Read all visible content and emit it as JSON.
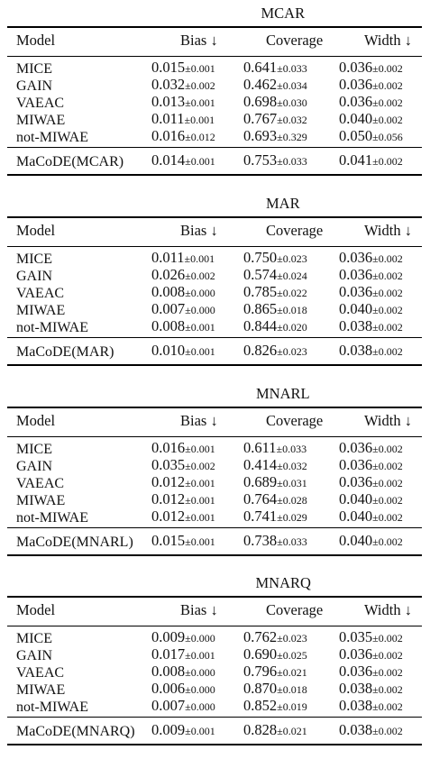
{
  "tables": [
    {
      "title": "MCAR",
      "columns": [
        "Model",
        "Bias ↓",
        "Coverage",
        "Width ↓"
      ],
      "rows": [
        {
          "model": "MICE",
          "bias": [
            "0.015",
            "±0.001"
          ],
          "coverage": [
            "0.641",
            "±0.033"
          ],
          "width": [
            "0.036",
            "±0.002"
          ]
        },
        {
          "model": "GAIN",
          "bias": [
            "0.032",
            "±0.002"
          ],
          "coverage": [
            "0.462",
            "±0.034"
          ],
          "width": [
            "0.036",
            "±0.002"
          ]
        },
        {
          "model": "VAEAC",
          "bias": [
            "0.013",
            "±0.001"
          ],
          "coverage": [
            "0.698",
            "±0.030"
          ],
          "width": [
            "0.036",
            "±0.002"
          ]
        },
        {
          "model": "MIWAE",
          "bias": [
            "0.011",
            "±0.001"
          ],
          "coverage": [
            "0.767",
            "±0.032"
          ],
          "width": [
            "0.040",
            "±0.002"
          ]
        },
        {
          "model": "not-MIWAE",
          "bias": [
            "0.016",
            "±0.012"
          ],
          "coverage": [
            "0.693",
            "±0.329"
          ],
          "width": [
            "0.050",
            "±0.056"
          ]
        }
      ],
      "final": {
        "model": "MaCoDE(MCAR)",
        "bias": [
          "0.014",
          "±0.001"
        ],
        "coverage": [
          "0.753",
          "±0.033"
        ],
        "width": [
          "0.041",
          "±0.002"
        ]
      }
    },
    {
      "title": "MAR",
      "columns": [
        "Model",
        "Bias ↓",
        "Coverage",
        "Width ↓"
      ],
      "rows": [
        {
          "model": "MICE",
          "bias": [
            "0.011",
            "±0.001"
          ],
          "coverage": [
            "0.750",
            "±0.023"
          ],
          "width": [
            "0.036",
            "±0.002"
          ]
        },
        {
          "model": "GAIN",
          "bias": [
            "0.026",
            "±0.002"
          ],
          "coverage": [
            "0.574",
            "±0.024"
          ],
          "width": [
            "0.036",
            "±0.002"
          ]
        },
        {
          "model": "VAEAC",
          "bias": [
            "0.008",
            "±0.000"
          ],
          "coverage": [
            "0.785",
            "±0.022"
          ],
          "width": [
            "0.036",
            "±0.002"
          ]
        },
        {
          "model": "MIWAE",
          "bias": [
            "0.007",
            "±0.000"
          ],
          "coverage": [
            "0.865",
            "±0.018"
          ],
          "width": [
            "0.040",
            "±0.002"
          ]
        },
        {
          "model": "not-MIWAE",
          "bias": [
            "0.008",
            "±0.001"
          ],
          "coverage": [
            "0.844",
            "±0.020"
          ],
          "width": [
            "0.038",
            "±0.002"
          ]
        }
      ],
      "final": {
        "model": "MaCoDE(MAR)",
        "bias": [
          "0.010",
          "±0.001"
        ],
        "coverage": [
          "0.826",
          "±0.023"
        ],
        "width": [
          "0.038",
          "±0.002"
        ]
      }
    },
    {
      "title": "MNARL",
      "columns": [
        "Model",
        "Bias ↓",
        "Coverage",
        "Width ↓"
      ],
      "rows": [
        {
          "model": "MICE",
          "bias": [
            "0.016",
            "±0.001"
          ],
          "coverage": [
            "0.611",
            "±0.033"
          ],
          "width": [
            "0.036",
            "±0.002"
          ]
        },
        {
          "model": "GAIN",
          "bias": [
            "0.035",
            "±0.002"
          ],
          "coverage": [
            "0.414",
            "±0.032"
          ],
          "width": [
            "0.036",
            "±0.002"
          ]
        },
        {
          "model": "VAEAC",
          "bias": [
            "0.012",
            "±0.001"
          ],
          "coverage": [
            "0.689",
            "±0.031"
          ],
          "width": [
            "0.036",
            "±0.002"
          ]
        },
        {
          "model": "MIWAE",
          "bias": [
            "0.012",
            "±0.001"
          ],
          "coverage": [
            "0.764",
            "±0.028"
          ],
          "width": [
            "0.040",
            "±0.002"
          ]
        },
        {
          "model": "not-MIWAE",
          "bias": [
            "0.012",
            "±0.001"
          ],
          "coverage": [
            "0.741",
            "±0.029"
          ],
          "width": [
            "0.040",
            "±0.002"
          ]
        }
      ],
      "final": {
        "model": "MaCoDE(MNARL)",
        "bias": [
          "0.015",
          "±0.001"
        ],
        "coverage": [
          "0.738",
          "±0.033"
        ],
        "width": [
          "0.040",
          "±0.002"
        ]
      }
    },
    {
      "title": "MNARQ",
      "columns": [
        "Model",
        "Bias ↓",
        "Coverage",
        "Width ↓"
      ],
      "rows": [
        {
          "model": "MICE",
          "bias": [
            "0.009",
            "±0.000"
          ],
          "coverage": [
            "0.762",
            "±0.023"
          ],
          "width": [
            "0.035",
            "±0.002"
          ]
        },
        {
          "model": "GAIN",
          "bias": [
            "0.017",
            "±0.001"
          ],
          "coverage": [
            "0.690",
            "±0.025"
          ],
          "width": [
            "0.036",
            "±0.002"
          ]
        },
        {
          "model": "VAEAC",
          "bias": [
            "0.008",
            "±0.000"
          ],
          "coverage": [
            "0.796",
            "±0.021"
          ],
          "width": [
            "0.036",
            "±0.002"
          ]
        },
        {
          "model": "MIWAE",
          "bias": [
            "0.006",
            "±0.000"
          ],
          "coverage": [
            "0.870",
            "±0.018"
          ],
          "width": [
            "0.038",
            "±0.002"
          ]
        },
        {
          "model": "not-MIWAE",
          "bias": [
            "0.007",
            "±0.000"
          ],
          "coverage": [
            "0.852",
            "±0.019"
          ],
          "width": [
            "0.038",
            "±0.002"
          ]
        }
      ],
      "final": {
        "model": "MaCoDE(MNARQ)",
        "bias": [
          "0.009",
          "±0.001"
        ],
        "coverage": [
          "0.828",
          "±0.021"
        ],
        "width": [
          "0.038",
          "±0.002"
        ]
      }
    }
  ]
}
